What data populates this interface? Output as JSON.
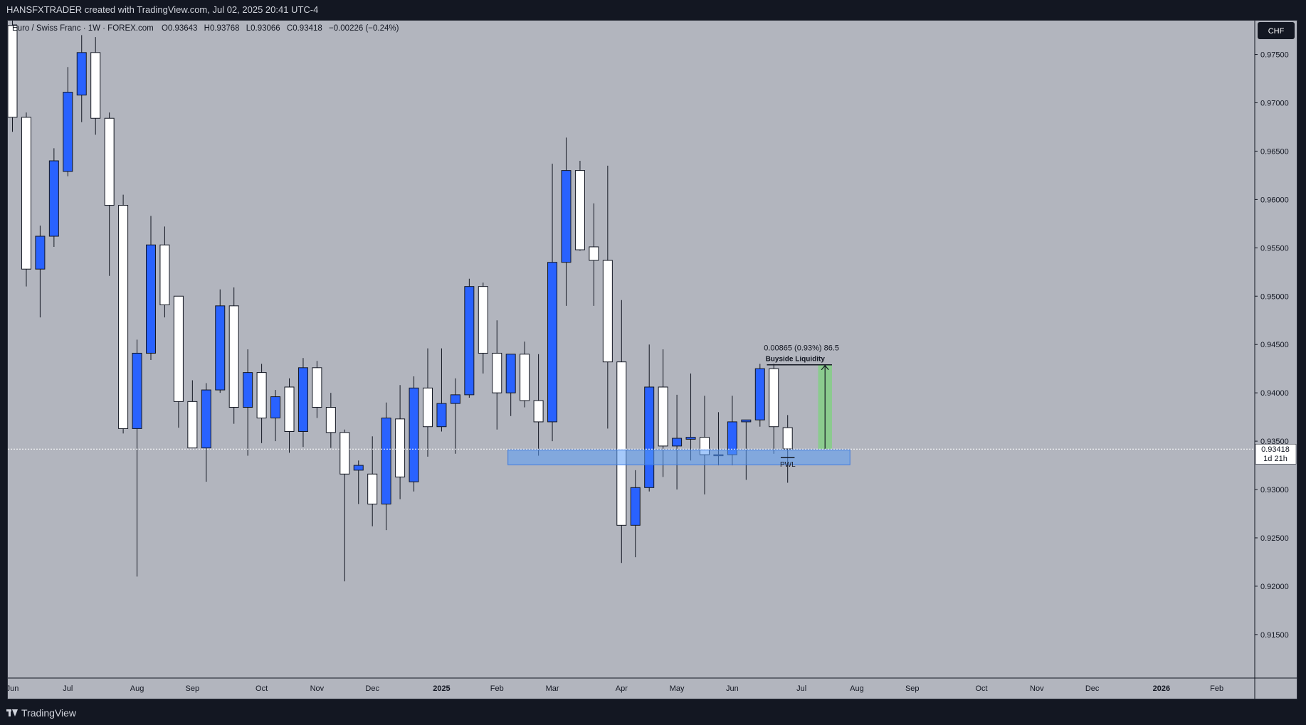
{
  "header": {
    "attribution": "HANSFXTRADER created with TradingView.com, Jul 02, 2025 20:41 UTC-4"
  },
  "legend": {
    "symbol": "Euro / Swiss Franc · 1W · FOREX.com",
    "open": "O0.93643",
    "high": "H0.93768",
    "low": "L0.93066",
    "close": "C0.93418",
    "change": "−0.00226 (−0.24%)"
  },
  "price_axis": {
    "currency_badge": "CHF",
    "last_price": "0.93418",
    "countdown": "1d 21h"
  },
  "annotations": {
    "measure_label": "0.00865 (0.93%) 86.5",
    "buyside_label": "Buyside Liquidity",
    "pwl_label": "PWL"
  },
  "footer": {
    "brand": "TradingView"
  },
  "colors": {
    "background": "#b2b5be",
    "up_body": "#2962ff",
    "down_body": "#ffffff",
    "wick": "#131722",
    "zone": "#5b9cf5",
    "measure": "#7ed37e",
    "frame": "#131722"
  },
  "chart_data": {
    "type": "candlestick",
    "symbol": "EURCHF",
    "timeframe": "1W",
    "ylim": [
      0.9105,
      0.9785
    ],
    "y_ticks": [
      "0.91500",
      "0.92000",
      "0.92500",
      "0.93000",
      "0.93500",
      "0.94000",
      "0.94500",
      "0.95000",
      "0.95500",
      "0.96000",
      "0.96500",
      "0.97000",
      "0.97500"
    ],
    "x_labels": [
      "Jun",
      "Jul",
      "Aug",
      "Sep",
      "Oct",
      "Nov",
      "Dec",
      "2025",
      "Feb",
      "Mar",
      "Apr",
      "May",
      "Jun",
      "Jul",
      "Aug",
      "Sep",
      "Oct",
      "Nov",
      "Dec",
      "2026",
      "Feb"
    ],
    "x_label_weeks": [
      0,
      4,
      9,
      13,
      18,
      22,
      26,
      31,
      35,
      39,
      44,
      48,
      52,
      57,
      61,
      65,
      70,
      74,
      78,
      83,
      87
    ],
    "up_color_meaning": "blue = bullish, white = bearish",
    "candles": [
      {
        "o": 0.978,
        "h": 0.979,
        "l": 0.967,
        "c": 0.9685
      },
      {
        "o": 0.9685,
        "h": 0.969,
        "l": 0.951,
        "c": 0.9528
      },
      {
        "o": 0.9528,
        "h": 0.9573,
        "l": 0.9478,
        "c": 0.9562
      },
      {
        "o": 0.9562,
        "h": 0.9653,
        "l": 0.9551,
        "c": 0.964
      },
      {
        "o": 0.9629,
        "h": 0.9737,
        "l": 0.9624,
        "c": 0.9711
      },
      {
        "o": 0.9708,
        "h": 0.977,
        "l": 0.968,
        "c": 0.9752
      },
      {
        "o": 0.9752,
        "h": 0.9768,
        "l": 0.9667,
        "c": 0.9684
      },
      {
        "o": 0.9684,
        "h": 0.969,
        "l": 0.9521,
        "c": 0.9594
      },
      {
        "o": 0.9594,
        "h": 0.9605,
        "l": 0.9358,
        "c": 0.9363
      },
      {
        "o": 0.9363,
        "h": 0.9455,
        "l": 0.921,
        "c": 0.9441
      },
      {
        "o": 0.9441,
        "h": 0.9583,
        "l": 0.9434,
        "c": 0.9553
      },
      {
        "o": 0.9553,
        "h": 0.9572,
        "l": 0.9478,
        "c": 0.9491
      },
      {
        "o": 0.95,
        "h": 0.95,
        "l": 0.9364,
        "c": 0.9391
      },
      {
        "o": 0.9391,
        "h": 0.9413,
        "l": 0.9343,
        "c": 0.9343
      },
      {
        "o": 0.9343,
        "h": 0.941,
        "l": 0.9308,
        "c": 0.9403
      },
      {
        "o": 0.9403,
        "h": 0.9507,
        "l": 0.94,
        "c": 0.949
      },
      {
        "o": 0.949,
        "h": 0.9509,
        "l": 0.9368,
        "c": 0.9385
      },
      {
        "o": 0.9385,
        "h": 0.9445,
        "l": 0.9335,
        "c": 0.9421
      },
      {
        "o": 0.9421,
        "h": 0.943,
        "l": 0.9348,
        "c": 0.9374
      },
      {
        "o": 0.9374,
        "h": 0.9403,
        "l": 0.935,
        "c": 0.9396
      },
      {
        "o": 0.9406,
        "h": 0.9415,
        "l": 0.9338,
        "c": 0.936
      },
      {
        "o": 0.936,
        "h": 0.9436,
        "l": 0.9344,
        "c": 0.9426
      },
      {
        "o": 0.9426,
        "h": 0.9433,
        "l": 0.9374,
        "c": 0.9385
      },
      {
        "o": 0.9385,
        "h": 0.94,
        "l": 0.9343,
        "c": 0.9359
      },
      {
        "o": 0.9359,
        "h": 0.9362,
        "l": 0.9205,
        "c": 0.9316
      },
      {
        "o": 0.932,
        "h": 0.933,
        "l": 0.9285,
        "c": 0.9325
      },
      {
        "o": 0.9316,
        "h": 0.9355,
        "l": 0.9262,
        "c": 0.9285
      },
      {
        "o": 0.9285,
        "h": 0.939,
        "l": 0.9258,
        "c": 0.9374
      },
      {
        "o": 0.9373,
        "h": 0.9408,
        "l": 0.929,
        "c": 0.9313
      },
      {
        "o": 0.9308,
        "h": 0.9417,
        "l": 0.9298,
        "c": 0.9405
      },
      {
        "o": 0.9405,
        "h": 0.9446,
        "l": 0.9334,
        "c": 0.9365
      },
      {
        "o": 0.9365,
        "h": 0.9446,
        "l": 0.936,
        "c": 0.9389
      },
      {
        "o": 0.9389,
        "h": 0.9415,
        "l": 0.9337,
        "c": 0.9398
      },
      {
        "o": 0.9398,
        "h": 0.9518,
        "l": 0.9395,
        "c": 0.951
      },
      {
        "o": 0.951,
        "h": 0.9514,
        "l": 0.942,
        "c": 0.9441
      },
      {
        "o": 0.9441,
        "h": 0.9475,
        "l": 0.9362,
        "c": 0.94
      },
      {
        "o": 0.94,
        "h": 0.9435,
        "l": 0.9376,
        "c": 0.944
      },
      {
        "o": 0.944,
        "h": 0.9453,
        "l": 0.9385,
        "c": 0.9392
      },
      {
        "o": 0.9392,
        "h": 0.944,
        "l": 0.9335,
        "c": 0.937
      },
      {
        "o": 0.937,
        "h": 0.9637,
        "l": 0.935,
        "c": 0.9535
      },
      {
        "o": 0.9535,
        "h": 0.9664,
        "l": 0.949,
        "c": 0.963
      },
      {
        "o": 0.963,
        "h": 0.964,
        "l": 0.9547,
        "c": 0.9548
      },
      {
        "o": 0.9551,
        "h": 0.9596,
        "l": 0.949,
        "c": 0.9537
      },
      {
        "o": 0.9537,
        "h": 0.9635,
        "l": 0.9363,
        "c": 0.9432
      },
      {
        "o": 0.9432,
        "h": 0.9496,
        "l": 0.9224,
        "c": 0.9263
      },
      {
        "o": 0.9263,
        "h": 0.932,
        "l": 0.923,
        "c": 0.9302
      },
      {
        "o": 0.9302,
        "h": 0.945,
        "l": 0.9298,
        "c": 0.9406
      },
      {
        "o": 0.9406,
        "h": 0.9445,
        "l": 0.9313,
        "c": 0.9345
      },
      {
        "o": 0.9345,
        "h": 0.9398,
        "l": 0.93,
        "c": 0.9353
      },
      {
        "o": 0.9352,
        "h": 0.942,
        "l": 0.933,
        "c": 0.9354
      },
      {
        "o": 0.9354,
        "h": 0.9397,
        "l": 0.9295,
        "c": 0.9336
      },
      {
        "o": 0.9336,
        "h": 0.938,
        "l": 0.9325,
        "c": 0.9336
      },
      {
        "o": 0.9336,
        "h": 0.9397,
        "l": 0.9325,
        "c": 0.937
      },
      {
        "o": 0.937,
        "h": 0.937,
        "l": 0.931,
        "c": 0.9372
      },
      {
        "o": 0.9372,
        "h": 0.943,
        "l": 0.9365,
        "c": 0.9425
      },
      {
        "o": 0.9425,
        "h": 0.943,
        "l": 0.9337,
        "c": 0.9365
      },
      {
        "o": 0.9364,
        "h": 0.9377,
        "l": 0.9307,
        "c": 0.9342
      }
    ],
    "demand_zone": {
      "from_week": 36,
      "to_week": 60.5,
      "top": 0.9341,
      "bottom": 0.933
    },
    "measure": {
      "from": 0.9342,
      "to": 0.9429,
      "text": "0.00865 (0.93%) 86.5"
    },
    "buyside_level": 0.9429,
    "pwl_level": 0.9333,
    "last_price": 0.93418
  }
}
